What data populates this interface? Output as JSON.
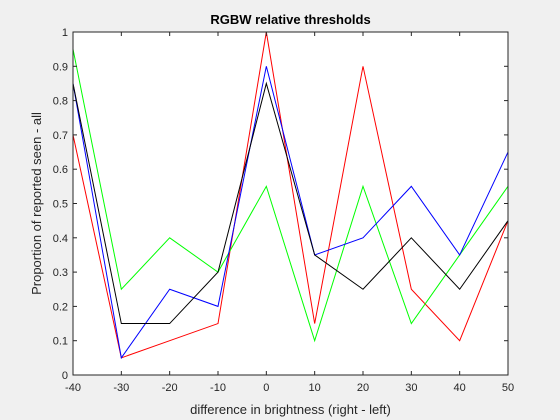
{
  "chart_data": {
    "type": "line",
    "title": "RGBW relative thresholds",
    "xlabel": "difference in brightness (right - left)",
    "ylabel": "Proportion of reported seen - all",
    "xlim": [
      -40,
      50
    ],
    "ylim": [
      0,
      1
    ],
    "x_ticks": [
      "-40",
      "-30",
      "-20",
      "-10",
      "0",
      "10",
      "20",
      "30",
      "40",
      "50"
    ],
    "y_ticks": [
      "0",
      "0.1",
      "0.2",
      "0.3",
      "0.4",
      "0.5",
      "0.6",
      "0.7",
      "0.8",
      "0.9",
      "1"
    ],
    "grid": false,
    "legend": "none",
    "x": [
      -40,
      -30,
      -20,
      -10,
      0,
      10,
      20,
      30,
      40,
      50
    ],
    "series": [
      {
        "color": "#ff0000",
        "values": [
          0.7,
          0.05,
          0.1,
          0.15,
          1.0,
          0.15,
          0.9,
          0.25,
          0.1,
          0.45
        ]
      },
      {
        "color": "#00ff00",
        "values": [
          0.95,
          0.25,
          0.4,
          0.3,
          0.55,
          0.1,
          0.55,
          0.15,
          0.35,
          0.55
        ]
      },
      {
        "color": "#0000ff",
        "values": [
          0.85,
          0.05,
          0.25,
          0.2,
          0.9,
          0.35,
          0.4,
          0.55,
          0.35,
          0.65
        ]
      },
      {
        "color": "#000000",
        "values": [
          0.85,
          0.15,
          0.15,
          0.3,
          0.85,
          0.35,
          0.25,
          0.4,
          0.25,
          0.45
        ]
      }
    ]
  }
}
